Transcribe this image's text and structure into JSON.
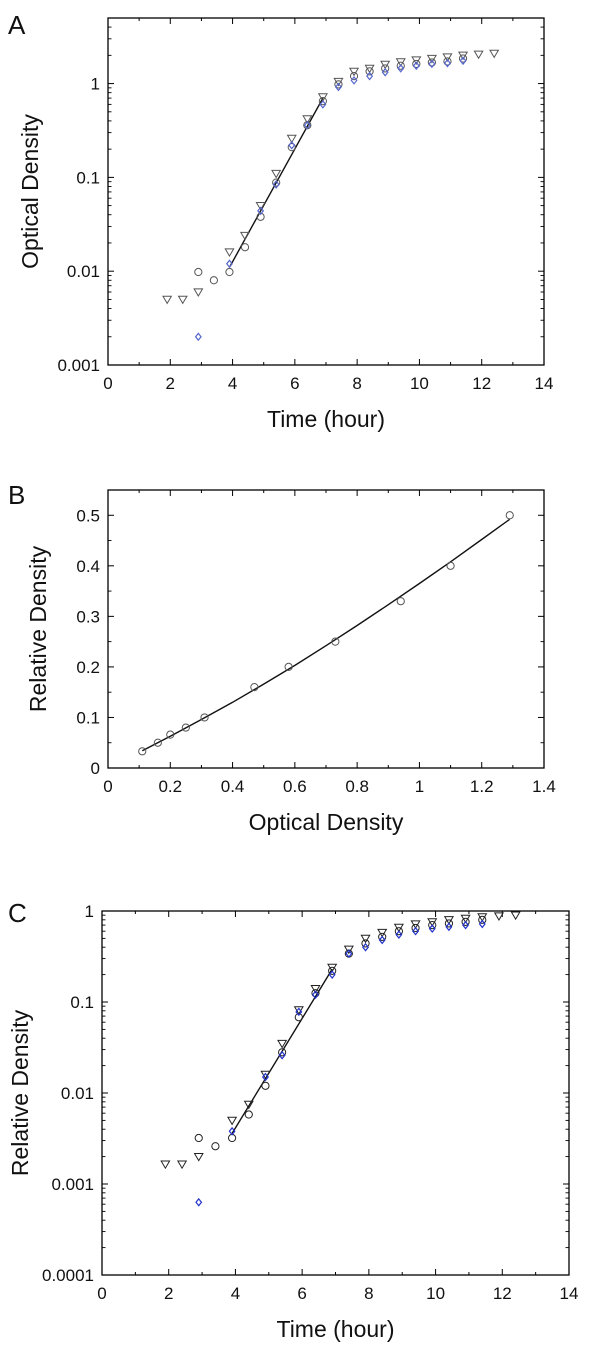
{
  "chart_data": [
    {
      "panel_label": "A",
      "type": "scatter",
      "xlabel": "Time (hour)",
      "ylabel": "Optical Density",
      "xlim": [
        0,
        14
      ],
      "ylim": [
        0.001,
        5
      ],
      "yscale": "log",
      "grid": false,
      "x_ticks": [
        "0",
        "2",
        "4",
        "6",
        "8",
        "10",
        "12",
        "14"
      ],
      "y_ticks": [
        "0.001",
        "0.01",
        "0.1",
        "1"
      ],
      "series": [
        {
          "marker": "circle",
          "color": "#555555",
          "points": [
            [
              2.9,
              0.0098
            ],
            [
              3.4,
              0.008
            ],
            [
              3.9,
              0.0098
            ],
            [
              4.4,
              0.018
            ],
            [
              4.9,
              0.038
            ],
            [
              5.4,
              0.088
            ],
            [
              5.9,
              0.21
            ],
            [
              6.4,
              0.36
            ],
            [
              6.9,
              0.65
            ],
            [
              7.4,
              0.98
            ],
            [
              7.9,
              1.2
            ],
            [
              8.4,
              1.35
            ],
            [
              8.9,
              1.45
            ],
            [
              9.4,
              1.55
            ],
            [
              9.9,
              1.62
            ],
            [
              10.4,
              1.68
            ],
            [
              10.9,
              1.72
            ],
            [
              11.4,
              1.85
            ]
          ]
        },
        {
          "marker": "triangle-down",
          "color": "#555555",
          "points": [
            [
              1.9,
              0.005
            ],
            [
              2.4,
              0.005
            ],
            [
              2.9,
              0.006
            ],
            [
              3.9,
              0.016
            ],
            [
              4.4,
              0.024
            ],
            [
              4.9,
              0.05
            ],
            [
              5.4,
              0.11
            ],
            [
              5.9,
              0.26
            ],
            [
              6.4,
              0.42
            ],
            [
              6.9,
              0.72
            ],
            [
              7.4,
              1.05
            ],
            [
              7.9,
              1.35
            ],
            [
              8.4,
              1.45
            ],
            [
              8.9,
              1.6
            ],
            [
              9.4,
              1.7
            ],
            [
              9.9,
              1.78
            ],
            [
              10.4,
              1.85
            ],
            [
              10.9,
              1.92
            ],
            [
              11.4,
              2.0
            ],
            [
              11.9,
              2.05
            ],
            [
              12.4,
              2.1
            ]
          ]
        },
        {
          "marker": "diamond",
          "color": "#5566cc",
          "points": [
            [
              2.9,
              0.002
            ],
            [
              3.9,
              0.012
            ],
            [
              4.9,
              0.044
            ],
            [
              5.4,
              0.084
            ],
            [
              5.9,
              0.22
            ],
            [
              6.4,
              0.36
            ],
            [
              6.9,
              0.6
            ],
            [
              7.4,
              0.92
            ],
            [
              7.9,
              1.08
            ],
            [
              8.4,
              1.2
            ],
            [
              8.9,
              1.32
            ],
            [
              9.4,
              1.45
            ],
            [
              9.9,
              1.55
            ],
            [
              10.4,
              1.62
            ],
            [
              10.9,
              1.65
            ],
            [
              11.4,
              1.75
            ]
          ]
        }
      ],
      "fit_line": [
        [
          3.9,
          0.011
        ],
        [
          6.9,
          0.7
        ]
      ]
    },
    {
      "panel_label": "B",
      "type": "scatter",
      "xlabel": "Optical Density",
      "ylabel": "Relative Density",
      "xlim": [
        0,
        1.4
      ],
      "ylim": [
        0,
        0.55
      ],
      "yscale": "linear",
      "grid": false,
      "x_ticks": [
        "0",
        "0.2",
        "0.4",
        "0.6",
        "0.8",
        "1",
        "1.2",
        "1.4"
      ],
      "y_ticks": [
        "0",
        "0.1",
        "0.2",
        "0.3",
        "0.4",
        "0.5"
      ],
      "series": [
        {
          "marker": "circle",
          "color": "#555555",
          "points": [
            [
              0.11,
              0.033
            ],
            [
              0.16,
              0.05
            ],
            [
              0.2,
              0.066
            ],
            [
              0.25,
              0.08
            ],
            [
              0.31,
              0.1
            ],
            [
              0.47,
              0.16
            ],
            [
              0.58,
              0.2
            ],
            [
              0.73,
              0.25
            ],
            [
              0.94,
              0.33
            ],
            [
              1.1,
              0.4
            ],
            [
              1.29,
              0.5
            ]
          ]
        }
      ],
      "fit_curve": [
        [
          0.11,
          0.034
        ],
        [
          0.2,
          0.063
        ],
        [
          0.3,
          0.096
        ],
        [
          0.4,
          0.13
        ],
        [
          0.5,
          0.166
        ],
        [
          0.6,
          0.203
        ],
        [
          0.7,
          0.242
        ],
        [
          0.8,
          0.282
        ],
        [
          0.9,
          0.323
        ],
        [
          1.0,
          0.365
        ],
        [
          1.1,
          0.408
        ],
        [
          1.2,
          0.452
        ],
        [
          1.29,
          0.492
        ]
      ]
    },
    {
      "panel_label": "C",
      "type": "scatter",
      "xlabel": "Time (hour)",
      "ylabel": "Relative Density",
      "xlim": [
        0,
        14
      ],
      "ylim": [
        0.0001,
        1
      ],
      "yscale": "log",
      "grid": false,
      "x_ticks": [
        "0",
        "2",
        "4",
        "6",
        "8",
        "10",
        "12",
        "14"
      ],
      "y_ticks": [
        "0.0001",
        "0.001",
        "0.01",
        "0.1",
        "1"
      ],
      "series": [
        {
          "marker": "circle",
          "color": "#222222",
          "points": [
            [
              2.9,
              0.0032
            ],
            [
              3.4,
              0.0026
            ],
            [
              3.9,
              0.0032
            ],
            [
              4.4,
              0.0058
            ],
            [
              4.9,
              0.012
            ],
            [
              5.4,
              0.028
            ],
            [
              5.9,
              0.068
            ],
            [
              6.4,
              0.125
            ],
            [
              6.9,
              0.22
            ],
            [
              7.4,
              0.34
            ],
            [
              7.9,
              0.44
            ],
            [
              8.4,
              0.52
            ],
            [
              8.9,
              0.6
            ],
            [
              9.4,
              0.65
            ],
            [
              9.9,
              0.7
            ],
            [
              10.4,
              0.73
            ],
            [
              10.9,
              0.76
            ],
            [
              11.4,
              0.8
            ]
          ]
        },
        {
          "marker": "triangle-down",
          "color": "#222222",
          "points": [
            [
              1.9,
              0.00165
            ],
            [
              2.4,
              0.00165
            ],
            [
              2.9,
              0.002
            ],
            [
              3.9,
              0.005
            ],
            [
              4.4,
              0.0075
            ],
            [
              4.9,
              0.016
            ],
            [
              5.4,
              0.035
            ],
            [
              5.9,
              0.082
            ],
            [
              6.4,
              0.14
            ],
            [
              6.9,
              0.24
            ],
            [
              7.4,
              0.38
            ],
            [
              7.9,
              0.5
            ],
            [
              8.4,
              0.58
            ],
            [
              8.9,
              0.66
            ],
            [
              9.4,
              0.72
            ],
            [
              9.9,
              0.76
            ],
            [
              10.4,
              0.8
            ],
            [
              10.9,
              0.83
            ],
            [
              11.4,
              0.86
            ],
            [
              11.9,
              0.88
            ],
            [
              12.4,
              0.9
            ]
          ]
        },
        {
          "marker": "diamond",
          "color": "#2233cc",
          "points": [
            [
              2.9,
              0.00063
            ],
            [
              3.9,
              0.0038
            ],
            [
              4.9,
              0.015
            ],
            [
              5.4,
              0.026
            ],
            [
              5.9,
              0.078
            ],
            [
              6.4,
              0.12
            ],
            [
              6.9,
              0.2
            ],
            [
              7.4,
              0.34
            ],
            [
              7.9,
              0.4
            ],
            [
              8.4,
              0.48
            ],
            [
              8.9,
              0.55
            ],
            [
              9.4,
              0.6
            ],
            [
              9.9,
              0.64
            ],
            [
              10.4,
              0.67
            ],
            [
              10.9,
              0.7
            ],
            [
              11.4,
              0.72
            ]
          ]
        }
      ],
      "fit_line": [
        [
          3.9,
          0.0036
        ],
        [
          6.9,
          0.23
        ]
      ]
    }
  ]
}
